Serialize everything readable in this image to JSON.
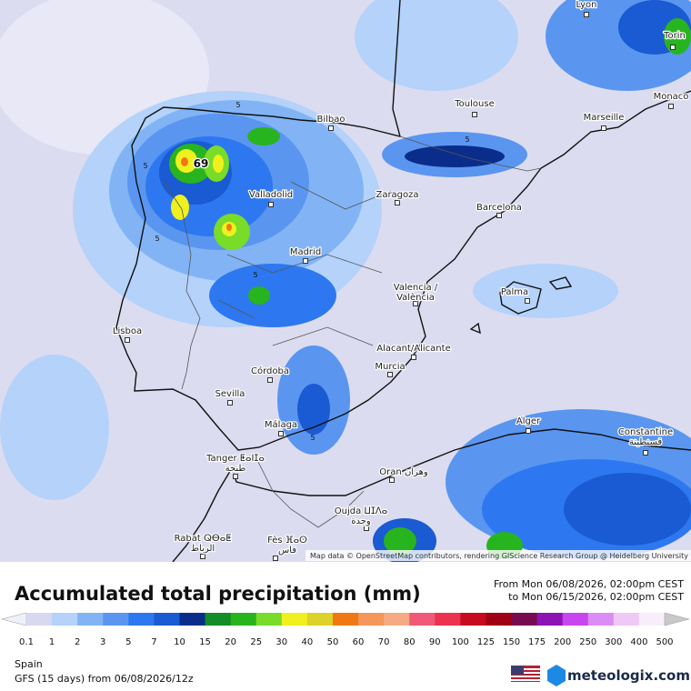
{
  "map": {
    "attribution": "Map data © OpenStreetMap contributors, rendering GIScience Research Group @ Heidelberg University",
    "max_label": 69,
    "contour_labels": [
      5,
      5,
      5,
      5,
      5,
      5
    ],
    "cities": [
      {
        "name": "Lyon"
      },
      {
        "name": "Torin"
      },
      {
        "name": "Monaco"
      },
      {
        "name": "Toulouse"
      },
      {
        "name": "Marseille"
      },
      {
        "name": "Bilbao"
      },
      {
        "name": "Valladolid"
      },
      {
        "name": "Zaragoza"
      },
      {
        "name": "Barcelona"
      },
      {
        "name": "Madrid"
      },
      {
        "name": "Valencia /",
        "alt": "València"
      },
      {
        "name": "Palma"
      },
      {
        "name": "Lisboa"
      },
      {
        "name": "Alacant/Alicante"
      },
      {
        "name": "Murcia"
      },
      {
        "name": "Córdoba"
      },
      {
        "name": "Sevilla"
      },
      {
        "name": "Málaga"
      },
      {
        "name": "Alger"
      },
      {
        "name": "Constantine",
        "alt": "قسنطينة"
      },
      {
        "name": "Tanger ⵟⴰⵏⵊⴰ",
        "alt": "طنجة"
      },
      {
        "name": "Oran وهران"
      },
      {
        "name": "Oujda ⵡⵊⴷⴰ",
        "alt": "وجدة"
      },
      {
        "name": "Rabat ⵕⴱⴰⵟ",
        "alt": "الرباط"
      },
      {
        "name": "Fès ⴼⴰⵙ",
        "alt": "فاس"
      }
    ]
  },
  "footer": {
    "title": "Accumulated total precipitation (mm)",
    "period_from": "From Mon 06/08/2026, 02:00pm CEST",
    "period_to": "to Mon 06/15/2026, 02:00pm CEST",
    "region": "Spain",
    "model": "GFS (15 days) from 06/08/2026/12z",
    "brand": "meteologix.com"
  },
  "legend": {
    "values": [
      0.1,
      1,
      2,
      3,
      5,
      7,
      10,
      15,
      20,
      25,
      30,
      40,
      50,
      60,
      70,
      80,
      90,
      100,
      125,
      150,
      175,
      200,
      250,
      300,
      400,
      500
    ],
    "colors": [
      "#f0f0fa",
      "#d8d8f0",
      "#b4d2fa",
      "#82b4f5",
      "#5a96f0",
      "#2d78f0",
      "#1a5ad2",
      "#0a2d8c",
      "#148c28",
      "#28b41e",
      "#78dc28",
      "#f0f01e",
      "#dcd228",
      "#f07814",
      "#f5965a",
      "#f5aa82",
      "#f05a78",
      "#eb3250",
      "#c80a1e",
      "#a00014",
      "#780a50",
      "#8c14b4",
      "#c846f0",
      "#dc8cf5",
      "#f0c8f5",
      "#f8eefa",
      "#c8c8c8"
    ]
  }
}
